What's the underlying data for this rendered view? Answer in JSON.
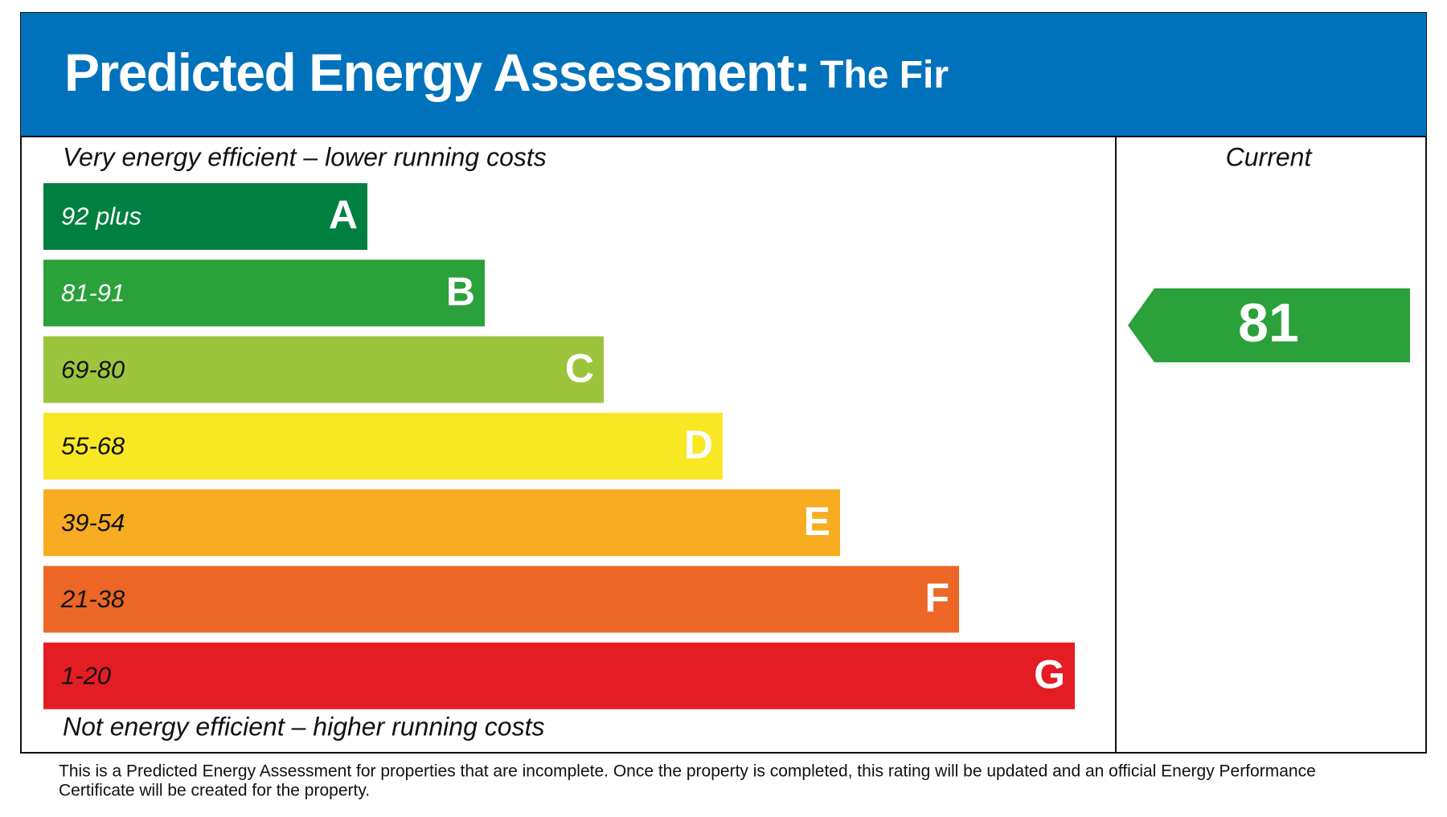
{
  "header": {
    "title": "Predicted Energy Assessment:",
    "subtitle": "The Fir",
    "color": "#0072bc"
  },
  "top_label": "Very energy efficient – lower running costs",
  "bottom_label": "Not energy efficient – higher running costs",
  "bands": [
    {
      "range": "92 plus",
      "letter": "A",
      "color": "#008040",
      "text_color": "#ffffff"
    },
    {
      "range": "81-91",
      "letter": "B",
      "color": "#2aa13a",
      "text_color": "#ffffff"
    },
    {
      "range": "69-80",
      "letter": "C",
      "color": "#9dc43d",
      "text_color": "#111111"
    },
    {
      "range": "55-68",
      "letter": "D",
      "color": "#f8e823",
      "text_color": "#111111"
    },
    {
      "range": "39-54",
      "letter": "E",
      "color": "#f7ac21",
      "text_color": "#111111"
    },
    {
      "range": "21-38",
      "letter": "F",
      "color": "#ec6625",
      "text_color": "#111111"
    },
    {
      "range": "1-20",
      "letter": "G",
      "color": "#e31d23",
      "text_color": "#111111"
    }
  ],
  "current": {
    "label": "Current",
    "value": 81,
    "color": "#2aa13a"
  },
  "footnote": [
    "This is a Predicted Energy Assessment for properties that are incomplete. Once the property is completed, this rating will be updated and an official Energy Performance",
    "Certificate will be created for the property."
  ]
}
